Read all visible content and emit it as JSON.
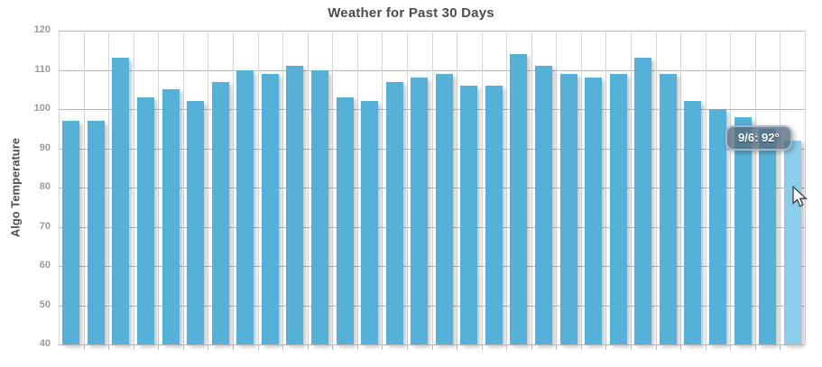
{
  "chart_data": {
    "type": "bar",
    "title": "Weather for Past 30 Days",
    "xlabel": "",
    "ylabel": "Algo Temperature",
    "ylim": [
      40,
      120
    ],
    "yticks": [
      40,
      50,
      60,
      70,
      80,
      90,
      100,
      110,
      120
    ],
    "grid": true,
    "legend": "none",
    "categories_note": "30 daily bars, no x-axis labels shown; hovered bar is 9/6",
    "values": [
      97,
      97,
      113,
      103,
      105,
      102,
      107,
      110,
      109,
      111,
      110,
      103,
      102,
      107,
      108,
      109,
      106,
      106,
      114,
      111,
      109,
      108,
      109,
      113,
      109,
      102,
      100,
      98,
      95,
      92
    ],
    "bar_color": "#55b1d8",
    "highlight_color": "#8aceec",
    "highlighted_index": 29,
    "tooltip": {
      "text": "9/6: 92°"
    }
  }
}
